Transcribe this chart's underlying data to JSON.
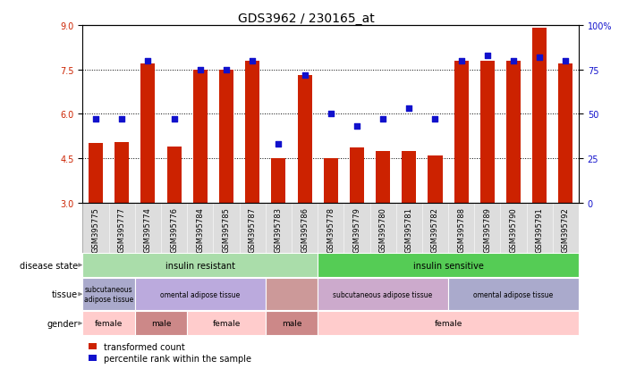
{
  "title": "GDS3962 / 230165_at",
  "samples": [
    "GSM395775",
    "GSM395777",
    "GSM395774",
    "GSM395776",
    "GSM395784",
    "GSM395785",
    "GSM395787",
    "GSM395783",
    "GSM395786",
    "GSM395778",
    "GSM395779",
    "GSM395780",
    "GSM395781",
    "GSM395782",
    "GSM395788",
    "GSM395789",
    "GSM395790",
    "GSM395791",
    "GSM395792"
  ],
  "bar_values": [
    5.0,
    5.05,
    7.7,
    4.9,
    7.5,
    7.48,
    7.8,
    4.5,
    7.3,
    4.5,
    4.85,
    4.75,
    4.75,
    4.6,
    7.78,
    7.78,
    7.78,
    8.9,
    7.7
  ],
  "percentile_values": [
    47,
    47,
    80,
    47,
    75,
    75,
    80,
    33,
    72,
    50,
    43,
    47,
    53,
    47,
    80,
    83,
    80,
    82,
    80
  ],
  "bar_color": "#cc2200",
  "dot_color": "#1111cc",
  "ylim_left": [
    3,
    9
  ],
  "ylim_right": [
    0,
    100
  ],
  "yticks_left": [
    3,
    4.5,
    6,
    7.5,
    9
  ],
  "yticks_right": [
    0,
    25,
    50,
    75,
    100
  ],
  "baseline": 3,
  "disease_state_groups": [
    {
      "label": "insulin resistant",
      "start": 0,
      "end": 9,
      "color": "#aaddaa"
    },
    {
      "label": "insulin sensitive",
      "start": 9,
      "end": 19,
      "color": "#55cc55"
    }
  ],
  "tissue_groups": [
    {
      "label": "subcutaneous\nadipose tissue",
      "start": 0,
      "end": 2,
      "color": "#aaaacc"
    },
    {
      "label": "omental adipose tissue",
      "start": 2,
      "end": 7,
      "color": "#bbaadd"
    },
    {
      "label": "",
      "start": 7,
      "end": 9,
      "color": "#cc9999"
    },
    {
      "label": "subcutaneous adipose tissue",
      "start": 9,
      "end": 14,
      "color": "#ccaacc"
    },
    {
      "label": "omental adipose tissue",
      "start": 14,
      "end": 19,
      "color": "#aaaacc"
    }
  ],
  "gender_groups": [
    {
      "label": "female",
      "start": 0,
      "end": 2,
      "color": "#ffcccc"
    },
    {
      "label": "male",
      "start": 2,
      "end": 4,
      "color": "#cc8888"
    },
    {
      "label": "female",
      "start": 4,
      "end": 7,
      "color": "#ffcccc"
    },
    {
      "label": "male",
      "start": 7,
      "end": 9,
      "color": "#cc8888"
    },
    {
      "label": "female",
      "start": 9,
      "end": 19,
      "color": "#ffcccc"
    }
  ],
  "row_labels": [
    "disease state",
    "tissue",
    "gender"
  ],
  "legend_items": [
    {
      "color": "#cc2200",
      "label": "transformed count"
    },
    {
      "color": "#1111cc",
      "label": "percentile rank within the sample"
    }
  ],
  "sample_band_color": "#dddddd",
  "grid_color": "black",
  "left_label_color": "black",
  "title_fontsize": 10,
  "tick_fontsize": 6,
  "annot_fontsize": 7
}
